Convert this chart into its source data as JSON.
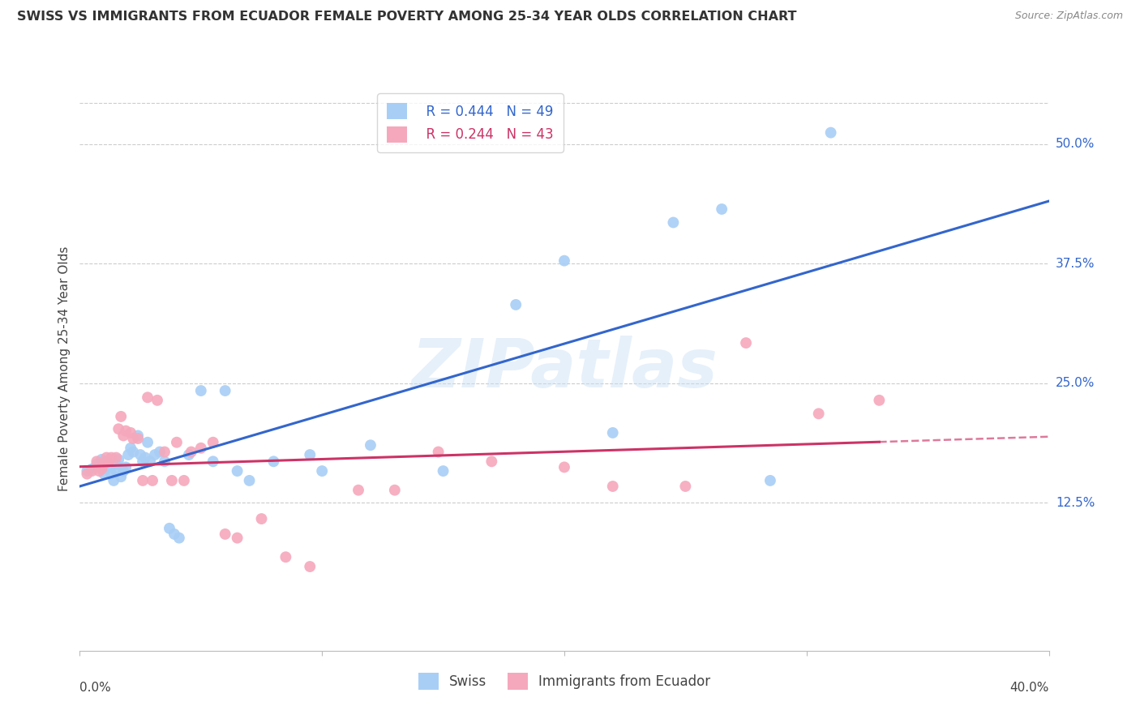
{
  "title": "SWISS VS IMMIGRANTS FROM ECUADOR FEMALE POVERTY AMONG 25-34 YEAR OLDS CORRELATION CHART",
  "source": "Source: ZipAtlas.com",
  "ylabel": "Female Poverty Among 25-34 Year Olds",
  "xlim": [
    0.0,
    0.4
  ],
  "ylim": [
    -0.03,
    0.56
  ],
  "yticks": [
    0.125,
    0.25,
    0.375,
    0.5
  ],
  "ytick_labels": [
    "12.5%",
    "25.0%",
    "37.5%",
    "50.0%"
  ],
  "swiss_R": 0.444,
  "swiss_N": 49,
  "ecuador_R": 0.244,
  "ecuador_N": 43,
  "swiss_color": "#a8cef5",
  "ecuador_color": "#f5a8bc",
  "swiss_line_color": "#3366cc",
  "ecuador_line_color": "#cc3366",
  "watermark": "ZIPatlas",
  "swiss_x": [
    0.003,
    0.005,
    0.007,
    0.008,
    0.009,
    0.01,
    0.011,
    0.012,
    0.013,
    0.014,
    0.015,
    0.015,
    0.016,
    0.017,
    0.018,
    0.019,
    0.02,
    0.021,
    0.022,
    0.024,
    0.025,
    0.026,
    0.027,
    0.028,
    0.029,
    0.031,
    0.033,
    0.035,
    0.037,
    0.039,
    0.041,
    0.045,
    0.05,
    0.055,
    0.06,
    0.065,
    0.07,
    0.08,
    0.095,
    0.1,
    0.12,
    0.15,
    0.18,
    0.2,
    0.22,
    0.245,
    0.265,
    0.285,
    0.31
  ],
  "swiss_y": [
    0.158,
    0.16,
    0.165,
    0.162,
    0.17,
    0.155,
    0.168,
    0.162,
    0.155,
    0.148,
    0.165,
    0.158,
    0.17,
    0.152,
    0.158,
    0.162,
    0.175,
    0.182,
    0.178,
    0.195,
    0.175,
    0.168,
    0.172,
    0.188,
    0.168,
    0.175,
    0.178,
    0.168,
    0.098,
    0.092,
    0.088,
    0.175,
    0.242,
    0.168,
    0.242,
    0.158,
    0.148,
    0.168,
    0.175,
    0.158,
    0.185,
    0.158,
    0.332,
    0.378,
    0.198,
    0.418,
    0.432,
    0.148,
    0.512
  ],
  "ecuador_x": [
    0.003,
    0.005,
    0.007,
    0.008,
    0.009,
    0.01,
    0.011,
    0.012,
    0.013,
    0.015,
    0.016,
    0.017,
    0.018,
    0.019,
    0.021,
    0.022,
    0.024,
    0.026,
    0.028,
    0.03,
    0.032,
    0.035,
    0.038,
    0.04,
    0.043,
    0.046,
    0.05,
    0.055,
    0.06,
    0.065,
    0.075,
    0.085,
    0.095,
    0.115,
    0.13,
    0.148,
    0.17,
    0.2,
    0.22,
    0.25,
    0.275,
    0.305,
    0.33
  ],
  "ecuador_y": [
    0.155,
    0.158,
    0.168,
    0.158,
    0.16,
    0.165,
    0.172,
    0.168,
    0.172,
    0.172,
    0.202,
    0.215,
    0.195,
    0.2,
    0.198,
    0.192,
    0.192,
    0.148,
    0.235,
    0.148,
    0.232,
    0.178,
    0.148,
    0.188,
    0.148,
    0.178,
    0.182,
    0.188,
    0.092,
    0.088,
    0.108,
    0.068,
    0.058,
    0.138,
    0.138,
    0.178,
    0.168,
    0.162,
    0.142,
    0.142,
    0.292,
    0.218,
    0.232
  ]
}
